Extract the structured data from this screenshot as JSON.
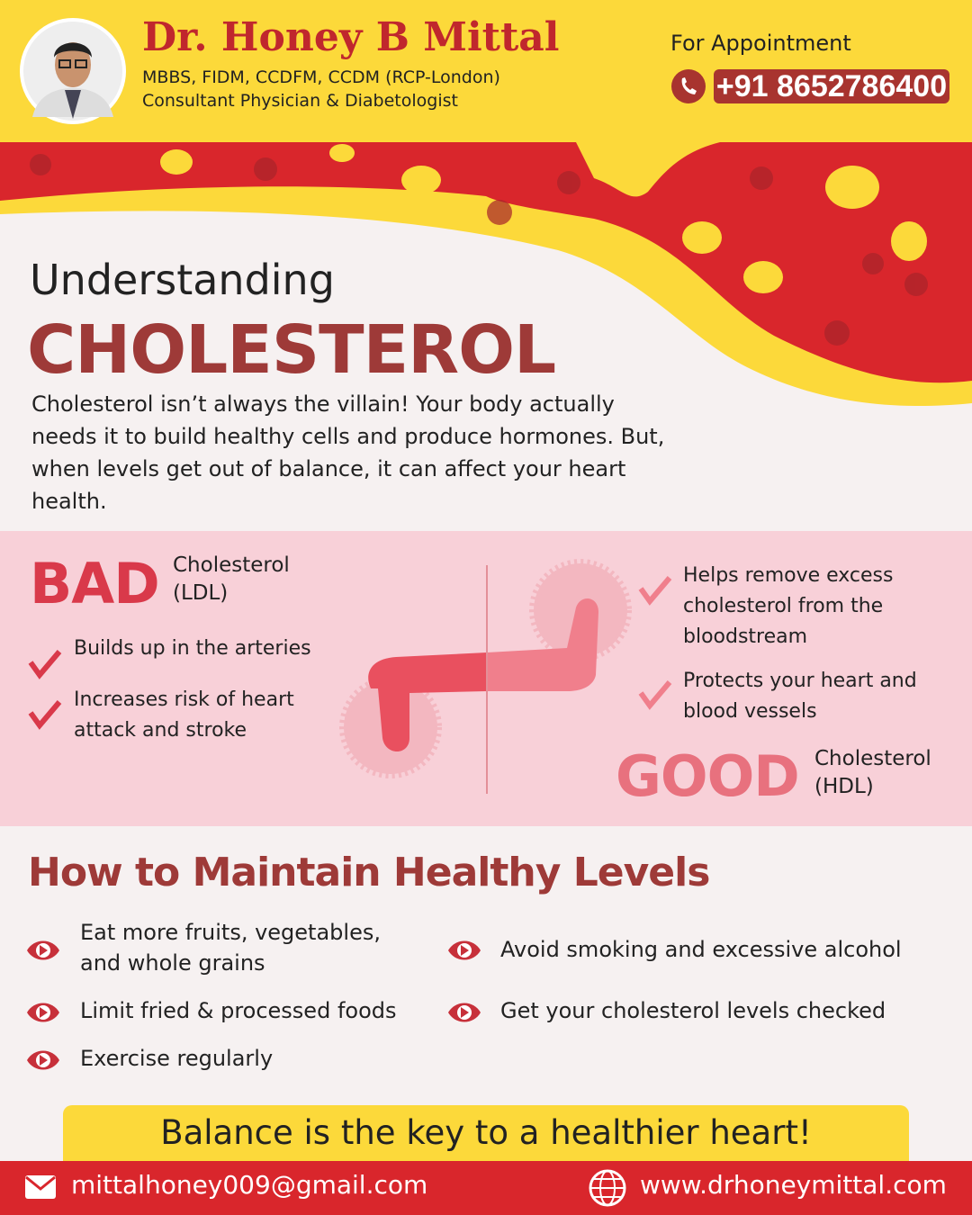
{
  "header": {
    "name": "Dr. Honey B Mittal",
    "credentials": "MBBS, FIDM, CCDFM, CCDM (RCP-London)",
    "role": "Consultant Physician & Diabetologist",
    "appointment_label": "For Appointment",
    "phone": "+91 8652786400"
  },
  "hero": {
    "kicker": "Understanding",
    "title": "CHOLESTEROL",
    "intro": "Cholesterol isn’t always the villain! Your body actually needs it to build healthy cells and produce hormones. But, when levels get out of balance, it can affect your heart health."
  },
  "bad": {
    "label": "BAD",
    "word": "Cholesterol",
    "type": "(LDL)",
    "points": [
      "Builds up in the arteries",
      "Increases risk of heart attack and stroke"
    ]
  },
  "good": {
    "label": "GOOD",
    "word": "Cholesterol",
    "type": "(HDL)",
    "points": [
      "Helps remove excess cholesterol from the bloodstream",
      "Protects your heart and blood vessels"
    ]
  },
  "tips": {
    "title": "How to Maintain Healthy Levels",
    "items": [
      "Eat more fruits, vegetables, and whole grains",
      "Avoid smoking and excessive alcohol",
      "Limit fried & processed foods",
      "Get your cholesterol levels checked",
      "Exercise regularly"
    ]
  },
  "tagline": "Balance is the key to a healthier heart!",
  "footer": {
    "email": "mittalhoney009@gmail.com",
    "website": "www.drhoneymittal.com"
  }
}
